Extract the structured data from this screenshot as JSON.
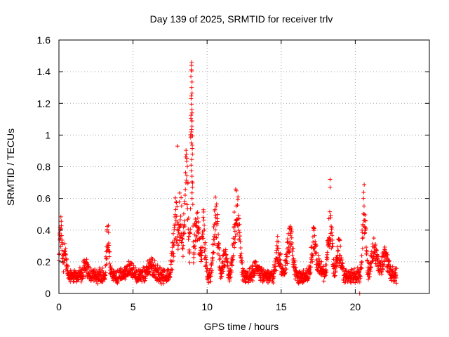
{
  "chart_data": {
    "type": "scatter",
    "title": "Day 139 of 2025, SRMTID for receiver trlv",
    "xlabel": "GPS time / hours",
    "ylabel": "SRMTID / TECUs",
    "xlim": [
      0,
      25
    ],
    "ylim": [
      0,
      1.6
    ],
    "xticks": [
      0,
      5,
      10,
      15,
      20
    ],
    "xtick_labels": [
      "0",
      "5",
      "10",
      "15",
      "20"
    ],
    "yticks": [
      0,
      0.2,
      0.4,
      0.6,
      0.8,
      1.0,
      1.2,
      1.4,
      1.6
    ],
    "ytick_labels": [
      "0",
      "0.2",
      "0.4",
      "0.6",
      "0.8",
      "1",
      "1.2",
      "1.4",
      "1.6"
    ],
    "grid": true,
    "marker": "+",
    "marker_color": "#ff0000",
    "series": [
      {
        "name": "SRMTID",
        "x_range": [
          0,
          22.8
        ],
        "baseline": 0.12,
        "noise": 0.04,
        "bursts": [
          {
            "x": 0.1,
            "width": 0.15,
            "peak": 0.45
          },
          {
            "x": 0.4,
            "width": 0.15,
            "peak": 0.26
          },
          {
            "x": 1.8,
            "width": 0.2,
            "peak": 0.18
          },
          {
            "x": 3.3,
            "width": 0.12,
            "peak": 0.39
          },
          {
            "x": 4.8,
            "width": 0.3,
            "peak": 0.17
          },
          {
            "x": 6.2,
            "width": 0.4,
            "peak": 0.18
          },
          {
            "x": 7.9,
            "width": 0.25,
            "peak": 0.5
          },
          {
            "x": 8.2,
            "width": 0.2,
            "peak": 0.55
          },
          {
            "x": 8.6,
            "width": 0.2,
            "peak": 0.75
          },
          {
            "x": 8.95,
            "width": 0.08,
            "peak": 1.45
          },
          {
            "x": 9.3,
            "width": 0.3,
            "peak": 0.45
          },
          {
            "x": 9.75,
            "width": 0.15,
            "peak": 0.44
          },
          {
            "x": 10.6,
            "width": 0.2,
            "peak": 0.55
          },
          {
            "x": 11.2,
            "width": 0.2,
            "peak": 0.25
          },
          {
            "x": 12.0,
            "width": 0.25,
            "peak": 0.6
          },
          {
            "x": 13.3,
            "width": 0.3,
            "peak": 0.17
          },
          {
            "x": 14.8,
            "width": 0.2,
            "peak": 0.3
          },
          {
            "x": 15.6,
            "width": 0.25,
            "peak": 0.4
          },
          {
            "x": 17.2,
            "width": 0.2,
            "peak": 0.37
          },
          {
            "x": 17.5,
            "width": 0.3,
            "peak": 0.2
          },
          {
            "x": 18.3,
            "width": 0.2,
            "peak": 0.45
          },
          {
            "x": 18.9,
            "width": 0.2,
            "peak": 0.3
          },
          {
            "x": 20.6,
            "width": 0.15,
            "peak": 0.6
          },
          {
            "x": 21.3,
            "width": 0.3,
            "peak": 0.3
          },
          {
            "x": 22.0,
            "width": 0.3,
            "peak": 0.25
          }
        ],
        "outliers": [
          {
            "x": 8.0,
            "y": 0.93
          },
          {
            "x": 18.3,
            "y": 0.72
          },
          {
            "x": 18.3,
            "y": 0.67
          },
          {
            "x": 20.3,
            "y": 0.0
          },
          {
            "x": 20.6,
            "y": 0.5
          }
        ]
      }
    ]
  }
}
